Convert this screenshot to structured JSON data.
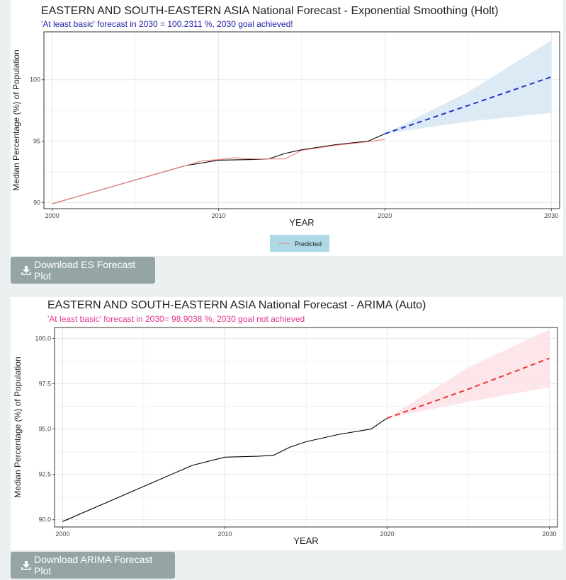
{
  "es_panel": {
    "title": "EASTERN AND SOUTH-EASTERN ASIA National Forecast - Exponential Smoothing (Holt)",
    "subtitle": "'At least basic' forecast in 2030 = 100.2311 %,  2030 goal achieved!",
    "subtitle_color": "#2222aa",
    "legend_label": "Predicted",
    "download_label": "Download ES Forecast Plot"
  },
  "arima_panel": {
    "title": "EASTERN AND SOUTH-EASTERN ASIA National Forecast - ARIMA (Auto)",
    "subtitle": "'At least basic' forecast in 2030= 98.9038 %,  2030 goal not achieved",
    "subtitle_color": "#e0388a",
    "download_label": "Download ARIMA Forecast Plot"
  },
  "chart_data": [
    {
      "type": "line",
      "xlabel": "YEAR",
      "ylabel": "Median Percentage (%) of Population",
      "xlim": [
        1999.5,
        2030.5
      ],
      "ylim": [
        89.5,
        103.9
      ],
      "x_ticks": [
        2000,
        2010,
        2020,
        2030
      ],
      "y_ticks": [
        90,
        95,
        100
      ],
      "y_tick_labels": [
        "90",
        "95",
        "100"
      ],
      "grid": true,
      "legend_position": "bottom",
      "series": [
        {
          "name": "",
          "color": "#000000",
          "x": [
            2000,
            2008,
            2010,
            2012,
            2013,
            2014,
            2015,
            2017,
            2019,
            2020
          ],
          "y": [
            89.9,
            93.0,
            93.45,
            93.5,
            93.55,
            94.0,
            94.3,
            94.7,
            95.0,
            95.6
          ]
        },
        {
          "name": "Predicted",
          "color": "#f08080",
          "x": [
            2000,
            2008,
            2009,
            2010,
            2011,
            2012,
            2013,
            2014,
            2015,
            2017,
            2019,
            2020
          ],
          "y": [
            89.9,
            93.0,
            93.4,
            93.5,
            93.65,
            93.55,
            93.55,
            93.55,
            94.25,
            94.65,
            94.95,
            95.15
          ]
        },
        {
          "name": "",
          "color": "#2233cc",
          "dashed": true,
          "x": [
            2020,
            2025,
            2030
          ],
          "y": [
            95.6,
            97.9,
            100.23
          ]
        }
      ],
      "band": {
        "color": "#d6e6f5",
        "x": [
          2020,
          2025,
          2030
        ],
        "lower": [
          95.6,
          96.6,
          97.3
        ],
        "upper": [
          95.6,
          99.0,
          103.2
        ]
      }
    },
    {
      "type": "line",
      "xlabel": "YEAR",
      "ylabel": "Median Percentage (%) of Population",
      "xlim": [
        1999.5,
        2030.5
      ],
      "ylim": [
        89.6,
        100.6
      ],
      "x_ticks": [
        2000,
        2010,
        2020,
        2030
      ],
      "y_ticks": [
        90.0,
        92.5,
        95.0,
        97.5,
        100.0
      ],
      "y_tick_labels": [
        "90.0",
        "92.5",
        "95.0",
        "97.5",
        "100.0"
      ],
      "grid": true,
      "series": [
        {
          "name": "",
          "color": "#000000",
          "x": [
            2000,
            2008,
            2010,
            2012,
            2013,
            2014,
            2015,
            2017,
            2019,
            2020
          ],
          "y": [
            89.9,
            93.0,
            93.45,
            93.5,
            93.55,
            94.0,
            94.3,
            94.7,
            95.0,
            95.6
          ]
        },
        {
          "name": "",
          "color": "#ee3333",
          "dashed": true,
          "x": [
            2020,
            2025,
            2030
          ],
          "y": [
            95.6,
            97.2,
            98.9
          ]
        }
      ],
      "band": {
        "color": "#fde2e6",
        "x": [
          2020,
          2025,
          2030
        ],
        "lower": [
          95.6,
          96.5,
          97.3
        ],
        "upper": [
          95.6,
          98.4,
          100.5
        ]
      }
    }
  ]
}
